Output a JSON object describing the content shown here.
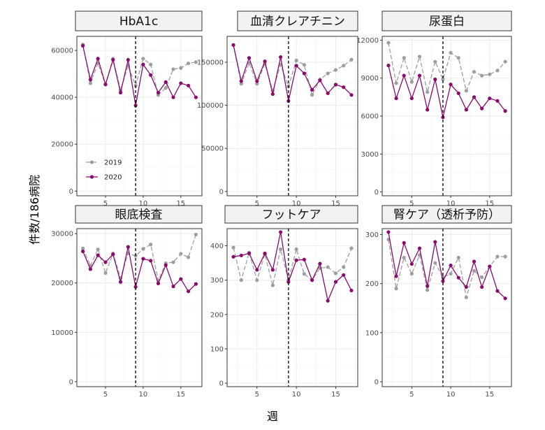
{
  "figure": {
    "y_axis_label": "件数/186病院",
    "x_axis_label": "週",
    "legend": {
      "entries": [
        "2019",
        "2020"
      ],
      "placement": "bottom-left of first panel"
    },
    "colors": {
      "2019": "#9e9e9e",
      "2020": "#8b0a6e",
      "vline": "#000000",
      "grid": "#ebebeb",
      "strip_bg": "#f2f2f2"
    }
  },
  "chart_data": [
    {
      "type": "line",
      "title": "HbA1c",
      "xlabel": "週",
      "ylabel": "件数/186病院",
      "x": [
        2,
        3,
        4,
        5,
        6,
        7,
        8,
        9,
        10,
        11,
        12,
        13,
        14,
        15,
        16,
        17
      ],
      "series": [
        {
          "name": "2019",
          "values": [
            62500,
            46000,
            54500,
            45500,
            56500,
            43000,
            53500,
            45000,
            56500,
            54000,
            41000,
            44000,
            52000,
            52500,
            54500,
            55000
          ]
        },
        {
          "name": "2020",
          "values": [
            62000,
            47500,
            56500,
            45500,
            56000,
            42000,
            56000,
            36500,
            54000,
            49500,
            42000,
            46500,
            40000,
            46000,
            45000,
            40000
          ]
        }
      ],
      "xticks": [
        5,
        10,
        15
      ],
      "yticks": [
        0,
        20000,
        40000,
        60000
      ],
      "ylim": [
        -2000,
        66000
      ],
      "xlim": [
        1.2,
        17.8
      ],
      "vline_x": 9,
      "legend": true
    },
    {
      "type": "line",
      "title": "血清クレアチニン",
      "xlabel": "週",
      "ylabel": "件数/186病院",
      "x": [
        2,
        3,
        4,
        5,
        6,
        7,
        8,
        9,
        10,
        11,
        12,
        13,
        14,
        15,
        16,
        17
      ],
      "series": [
        {
          "name": "2019",
          "values": [
            170000,
            125000,
            149000,
            125000,
            148000,
            117000,
            147000,
            122000,
            152000,
            147000,
            112000,
            130000,
            137000,
            141000,
            146000,
            153000
          ]
        },
        {
          "name": "2020",
          "values": [
            170000,
            128000,
            155000,
            128000,
            151000,
            113000,
            156000,
            105000,
            146000,
            137000,
            118000,
            129000,
            114000,
            124000,
            121000,
            112000
          ]
        }
      ],
      "xticks": [
        5,
        10,
        15
      ],
      "yticks": [
        0,
        50000,
        100000,
        150000
      ],
      "ylim": [
        -5000,
        180000
      ],
      "xlim": [
        1.2,
        17.8
      ],
      "vline_x": 9,
      "legend": false
    },
    {
      "type": "line",
      "title": "尿蛋白",
      "xlabel": "週",
      "ylabel": "件数/186病院",
      "x": [
        2,
        3,
        4,
        5,
        6,
        7,
        8,
        9,
        10,
        11,
        12,
        13,
        14,
        15,
        16,
        17
      ],
      "series": [
        {
          "name": "2019",
          "values": [
            11800,
            8600,
            10600,
            8700,
            10700,
            7900,
            10300,
            8900,
            11000,
            10600,
            8000,
            9500,
            9200,
            9300,
            9600,
            10300
          ]
        },
        {
          "name": "2020",
          "values": [
            10000,
            7400,
            9200,
            7400,
            9200,
            6500,
            8900,
            5900,
            8500,
            7800,
            6500,
            7500,
            6600,
            7400,
            7200,
            6400
          ]
        }
      ],
      "xticks": [
        5,
        10,
        15
      ],
      "yticks": [
        0,
        3000,
        6000,
        9000,
        12000
      ],
      "ylim": [
        -300,
        12300
      ],
      "xlim": [
        1.2,
        17.8
      ],
      "vline_x": 9,
      "legend": false
    },
    {
      "type": "line",
      "title": "眼底検査",
      "xlabel": "週",
      "ylabel": "件数/186病院",
      "x": [
        2,
        3,
        4,
        5,
        6,
        7,
        8,
        9,
        10,
        11,
        12,
        13,
        14,
        15,
        16,
        17
      ],
      "series": [
        {
          "name": "2019",
          "values": [
            27000,
            23500,
            26800,
            22000,
            26000,
            21000,
            26000,
            25500,
            26900,
            27800,
            20500,
            24000,
            24200,
            25900,
            25200,
            29800
          ]
        },
        {
          "name": "2020",
          "values": [
            26400,
            22800,
            25600,
            24200,
            25800,
            20200,
            27300,
            19200,
            24900,
            24500,
            19900,
            23600,
            19300,
            20800,
            18300,
            19800
          ]
        }
      ],
      "xticks": [
        5,
        10,
        15
      ],
      "yticks": [
        0,
        10000,
        20000,
        30000
      ],
      "ylim": [
        -1000,
        31000
      ],
      "xlim": [
        1.2,
        17.8
      ],
      "vline_x": 9,
      "legend": false
    },
    {
      "type": "line",
      "title": "フットケア",
      "xlabel": "週",
      "ylabel": "件数/186病院",
      "x": [
        2,
        3,
        4,
        5,
        6,
        7,
        8,
        9,
        10,
        11,
        12,
        13,
        14,
        15,
        16,
        17
      ],
      "series": [
        {
          "name": "2019",
          "values": [
            395,
            300,
            380,
            300,
            375,
            285,
            390,
            300,
            390,
            318,
            300,
            335,
            338,
            320,
            338,
            393
          ]
        },
        {
          "name": "2020",
          "values": [
            368,
            372,
            378,
            330,
            378,
            330,
            440,
            295,
            358,
            360,
            300,
            348,
            240,
            295,
            315,
            270
          ]
        }
      ],
      "xticks": [
        5,
        10,
        15
      ],
      "yticks": [
        0,
        100,
        200,
        300,
        400
      ],
      "ylim": [
        -10,
        450
      ],
      "xlim": [
        1.2,
        17.8
      ],
      "vline_x": 9,
      "legend": false
    },
    {
      "type": "line",
      "title": "腎ケア（透析予防）",
      "xlabel": "週",
      "ylabel": "件数/186病院",
      "x": [
        2,
        3,
        4,
        5,
        6,
        7,
        8,
        9,
        10,
        11,
        12,
        13,
        14,
        15,
        16,
        17
      ],
      "series": [
        {
          "name": "2019",
          "values": [
            290,
            190,
            253,
            220,
            258,
            187,
            242,
            213,
            220,
            253,
            172,
            226,
            213,
            235,
            255,
            255
          ]
        },
        {
          "name": "2020",
          "values": [
            305,
            215,
            283,
            240,
            272,
            195,
            285,
            205,
            237,
            212,
            193,
            245,
            193,
            235,
            185,
            170
          ]
        }
      ],
      "xticks": [
        5,
        10,
        15
      ],
      "yticks": [
        0,
        100,
        200,
        300
      ],
      "ylim": [
        -10,
        312
      ],
      "xlim": [
        1.2,
        17.8
      ],
      "vline_x": 9,
      "legend": false
    }
  ]
}
